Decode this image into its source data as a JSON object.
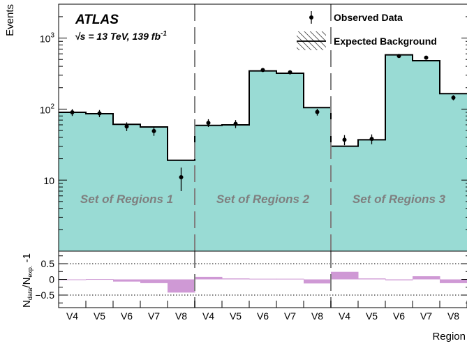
{
  "chart_data": {
    "type": "bar",
    "experiment": "ATLAS",
    "energy_label": "√s = 13 TeV, 139 fb",
    "energy_sup": "-1",
    "ylabel": "Events",
    "xlabel": "Region",
    "y_scale": "log",
    "ylim": [
      1,
      3000
    ],
    "y_ticks": [
      {
        "value": 1000,
        "base": "10",
        "exp": "3"
      },
      {
        "value": 100,
        "base": "10",
        "exp": "2"
      },
      {
        "value": 10,
        "base": "10",
        "exp": ""
      }
    ],
    "categories": [
      "V4",
      "V5",
      "V6",
      "V7",
      "V8",
      "V4",
      "V5",
      "V6",
      "V7",
      "V8",
      "V4",
      "V5",
      "V6",
      "V7",
      "V8"
    ],
    "region_sets": [
      {
        "label": "Set of Regions 1",
        "start": 0,
        "end": 5
      },
      {
        "label": "Set of Regions 2",
        "start": 5,
        "end": 10
      },
      {
        "label": "Set of Regions 3",
        "start": 10,
        "end": 15
      }
    ],
    "separators_at": [
      5,
      10
    ],
    "series": [
      {
        "name": "Observed Data",
        "kind": "points",
        "values": [
          90,
          87,
          57,
          49,
          11,
          64,
          62,
          355,
          330,
          91,
          37,
          38,
          560,
          530,
          145
        ],
        "err_low": [
          10,
          10,
          8,
          7,
          4,
          8,
          8,
          19,
          18,
          10,
          6,
          6,
          24,
          23,
          12
        ],
        "err_high": [
          10,
          10,
          8,
          7,
          4,
          8,
          8,
          19,
          18,
          10,
          6,
          6,
          24,
          23,
          12
        ]
      },
      {
        "name": "Expected Background",
        "kind": "hist",
        "values": [
          90,
          86,
          61,
          56,
          19,
          59,
          60,
          345,
          320,
          105,
          30,
          37,
          580,
          480,
          165
        ]
      }
    ],
    "ratio_panel": {
      "ylabel_num": "N",
      "ylabel_num_sub": "data",
      "ylabel_den": "N",
      "ylabel_den_sub": "exp.",
      "ylabel_suffix": "-1",
      "ylim": [
        -0.9,
        0.9
      ],
      "y_ticks": [
        {
          "value": 0.5,
          "label": "0.5"
        },
        {
          "value": 0,
          "label": "0"
        },
        {
          "value": -0.5,
          "label": "−0.5"
        }
      ],
      "dotted_lines_at": [
        0.5,
        -0.5
      ],
      "values": [
        0.0,
        0.01,
        -0.07,
        -0.12,
        -0.42,
        0.08,
        0.03,
        0.02,
        0.02,
        -0.13,
        0.24,
        0.03,
        -0.03,
        0.1,
        -0.12
      ],
      "color": "#cf99d5"
    },
    "colors": {
      "background_fill": "#99dbd4",
      "separator": "#7f7f7f"
    },
    "grid": false,
    "legend_position": "top-right"
  }
}
